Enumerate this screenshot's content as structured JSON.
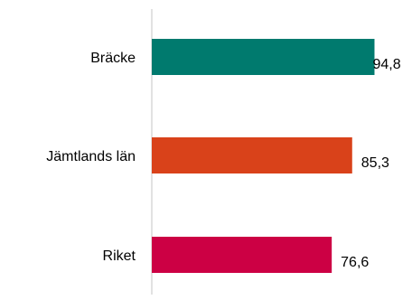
{
  "chart_data": {
    "type": "bar",
    "orientation": "horizontal",
    "title": "",
    "xlabel": "",
    "ylabel": "",
    "xlim": [
      0,
      100
    ],
    "grid": false,
    "legend": "none",
    "categories": [
      "Bräcke",
      "Jämtlands län",
      "Riket"
    ],
    "values": [
      94.8,
      85.3,
      76.6
    ],
    "value_labels": [
      "94,8",
      "85,3",
      "76,6"
    ],
    "colors": [
      "#007a6e",
      "#d9421a",
      "#cc0044"
    ],
    "axis_color": "#d9d9d9"
  }
}
